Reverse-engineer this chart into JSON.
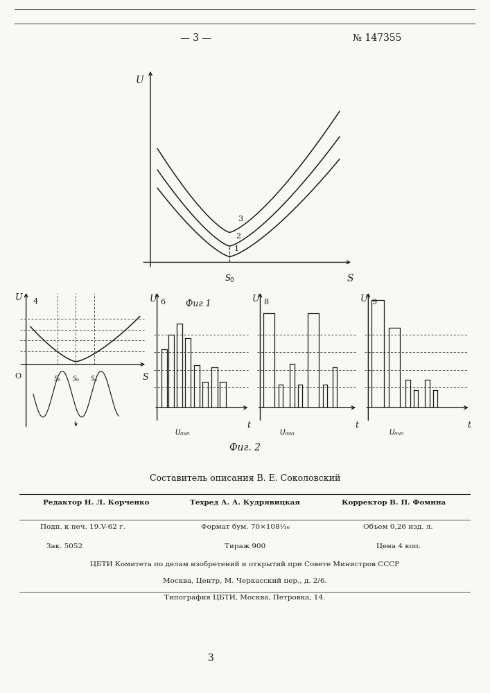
{
  "page_number": "3",
  "patent_number": "№ 147355",
  "fig1_title": "Фиг 1",
  "fig2_title": "Фиг. 2",
  "author_line": "Составитель описания В. Е. Соколовский",
  "editor_line": "Редактор Н. Л. Корченко",
  "techred_line": "Техред А. А. Кудрявицкая",
  "corrector_line": "Корректор В. П. Фомина",
  "line1a": "Подп. к печ. 19.V-62 г.",
  "line1b": "Формат бум. 70×108¹⁄₁₆",
  "line1c": "Объем 0,26 изд. л.",
  "line2a": "Зак. 5052",
  "line2b": "Тираж 900",
  "line2c": "Цена 4 коп.",
  "line3": "ЦБТИ Комитета по делам изобретений и открытий при Совете Министров СССР",
  "line4": "Москва, Центр, М. Черкасский пер., д. 2/6.",
  "line5": "Типография ЦБТИ, Москва, Петровка, 14.",
  "bottom_page": "3",
  "bg_color": "#f8f8f5",
  "line_color": "#1a1a1a"
}
